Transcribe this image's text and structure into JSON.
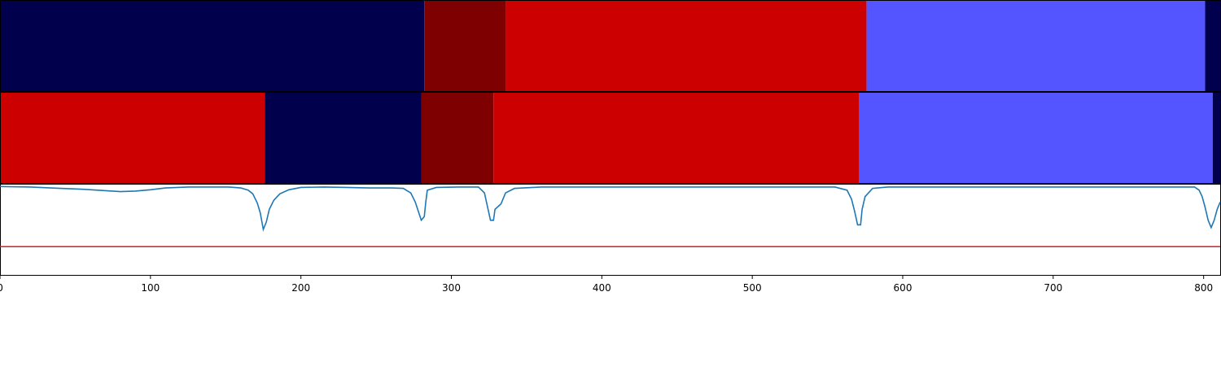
{
  "chart_data": {
    "type": "segment-bands-with-line",
    "x_range": [
      0,
      811
    ],
    "x_ticks": [
      0,
      100,
      200,
      300,
      400,
      500,
      600,
      700,
      800
    ],
    "x_tick_labels": [
      "0",
      "100",
      "200",
      "300",
      "400",
      "500",
      "600",
      "700",
      "800"
    ],
    "colors": {
      "navy": "#00004c",
      "maroon": "#7f0000",
      "red": "#cc0000",
      "blue": "#5555ff",
      "line": "#1f77b4",
      "threshold": "#e31a1c"
    },
    "band_rows": [
      {
        "segments": [
          {
            "start": 0,
            "end": 282,
            "color": "navy"
          },
          {
            "start": 282,
            "end": 336,
            "color": "maroon"
          },
          {
            "start": 336,
            "end": 576,
            "color": "red"
          },
          {
            "start": 576,
            "end": 801,
            "color": "blue"
          },
          {
            "start": 801,
            "end": 811,
            "color": "navy"
          }
        ]
      },
      {
        "segments": [
          {
            "start": 0,
            "end": 176,
            "color": "red"
          },
          {
            "start": 176,
            "end": 280,
            "color": "navy"
          },
          {
            "start": 280,
            "end": 328,
            "color": "maroon"
          },
          {
            "start": 328,
            "end": 571,
            "color": "red"
          },
          {
            "start": 571,
            "end": 806,
            "color": "blue"
          },
          {
            "start": 806,
            "end": 811,
            "color": "navy"
          }
        ]
      }
    ],
    "line_panel": {
      "y_range": [
        0,
        1
      ],
      "threshold": 0.31,
      "series": {
        "points": [
          [
            0,
            0.97
          ],
          [
            20,
            0.965
          ],
          [
            40,
            0.95
          ],
          [
            55,
            0.94
          ],
          [
            70,
            0.925
          ],
          [
            80,
            0.915
          ],
          [
            90,
            0.92
          ],
          [
            100,
            0.935
          ],
          [
            110,
            0.955
          ],
          [
            125,
            0.965
          ],
          [
            140,
            0.965
          ],
          [
            152,
            0.965
          ],
          [
            160,
            0.955
          ],
          [
            165,
            0.93
          ],
          [
            168,
            0.89
          ],
          [
            171,
            0.79
          ],
          [
            173,
            0.68
          ],
          [
            175,
            0.5
          ],
          [
            177,
            0.58
          ],
          [
            179,
            0.72
          ],
          [
            182,
            0.82
          ],
          [
            186,
            0.89
          ],
          [
            192,
            0.935
          ],
          [
            200,
            0.96
          ],
          [
            215,
            0.965
          ],
          [
            230,
            0.96
          ],
          [
            245,
            0.955
          ],
          [
            260,
            0.955
          ],
          [
            268,
            0.95
          ],
          [
            273,
            0.9
          ],
          [
            276,
            0.8
          ],
          [
            278,
            0.7
          ],
          [
            280,
            0.6
          ],
          [
            282,
            0.64
          ],
          [
            283,
            0.8
          ],
          [
            284,
            0.93
          ],
          [
            290,
            0.96
          ],
          [
            305,
            0.965
          ],
          [
            318,
            0.965
          ],
          [
            322,
            0.9
          ],
          [
            324,
            0.75
          ],
          [
            326,
            0.6
          ],
          [
            328,
            0.6
          ],
          [
            329,
            0.72
          ],
          [
            333,
            0.78
          ],
          [
            336,
            0.9
          ],
          [
            342,
            0.95
          ],
          [
            360,
            0.965
          ],
          [
            400,
            0.965
          ],
          [
            450,
            0.965
          ],
          [
            500,
            0.965
          ],
          [
            555,
            0.965
          ],
          [
            563,
            0.93
          ],
          [
            566,
            0.83
          ],
          [
            568,
            0.7
          ],
          [
            570,
            0.55
          ],
          [
            572,
            0.55
          ],
          [
            573,
            0.72
          ],
          [
            575,
            0.86
          ],
          [
            580,
            0.95
          ],
          [
            590,
            0.965
          ],
          [
            650,
            0.965
          ],
          [
            700,
            0.965
          ],
          [
            760,
            0.965
          ],
          [
            794,
            0.965
          ],
          [
            797,
            0.93
          ],
          [
            799,
            0.86
          ],
          [
            801,
            0.74
          ],
          [
            803,
            0.6
          ],
          [
            805,
            0.52
          ],
          [
            807,
            0.6
          ],
          [
            809,
            0.72
          ],
          [
            811,
            0.8
          ]
        ]
      }
    }
  }
}
